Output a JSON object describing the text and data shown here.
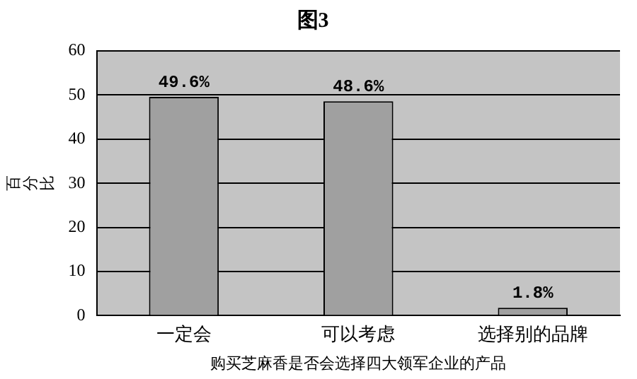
{
  "chart_data": {
    "type": "bar",
    "title": "图3",
    "xlabel": "购买芝麻香是否会选择四大领军企业的产品",
    "ylabel": "百分比",
    "categories": [
      "一定会",
      "可以考虑",
      "选择别的品牌"
    ],
    "values": [
      49.6,
      48.6,
      1.8
    ],
    "value_labels": [
      "49.6%",
      "48.6%",
      "1.8%"
    ],
    "color": "#a0a0a0",
    "ylim": [
      0,
      60
    ],
    "yticks": [
      0,
      10,
      20,
      30,
      40,
      50,
      60
    ],
    "grid": "y",
    "legend": false
  }
}
